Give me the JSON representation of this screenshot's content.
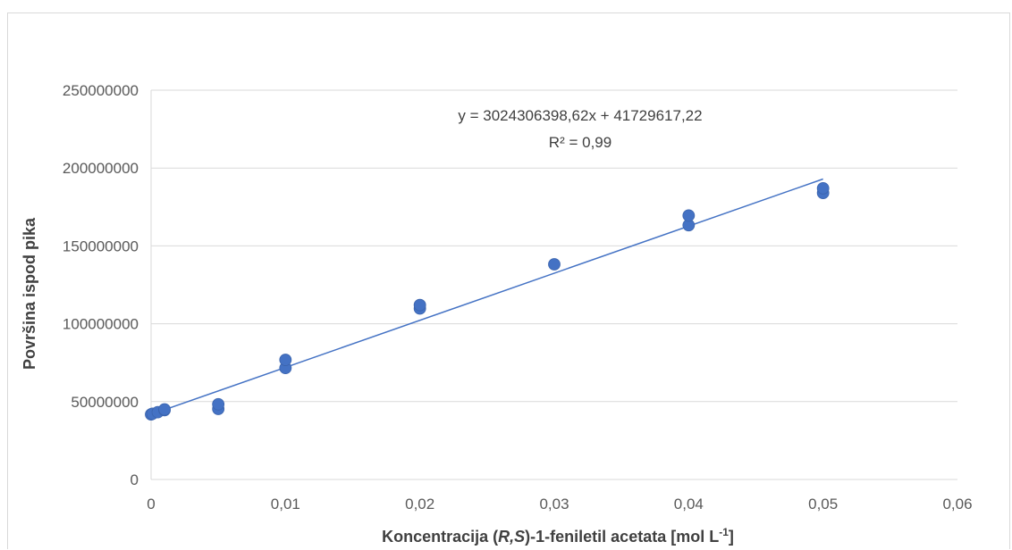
{
  "chart_data": {
    "type": "scatter",
    "title": "",
    "xlabel": {
      "prefix": "Koncentracija (",
      "italic": "R,S",
      "mid": ")-1-feniletil acetata [mol L",
      "sup": "-1",
      "suffix": "]"
    },
    "ylabel": "Površina ispod pika",
    "xlim": [
      0,
      0.06
    ],
    "ylim": [
      0,
      250000000
    ],
    "x_ticks": [
      0,
      0.01,
      0.02,
      0.03,
      0.04,
      0.05,
      0.06
    ],
    "x_tick_labels": [
      "0",
      "0,01",
      "0,02",
      "0,03",
      "0,04",
      "0,05",
      "0,06"
    ],
    "y_ticks": [
      0,
      50000000,
      100000000,
      150000000,
      200000000,
      250000000
    ],
    "y_tick_labels": [
      "0",
      "50000000",
      "100000000",
      "150000000",
      "200000000",
      "250000000"
    ],
    "grid": "horizontal",
    "series": [
      {
        "marker_color": "#4472C4",
        "points": [
          {
            "x": 0,
            "y": 41800000
          },
          {
            "x": 0.0001,
            "y": 42200000
          },
          {
            "x": 0.0005,
            "y": 43200000
          },
          {
            "x": 0.001,
            "y": 44500000
          },
          {
            "x": 0.001,
            "y": 45000000
          },
          {
            "x": 0.005,
            "y": 45300000
          },
          {
            "x": 0.005,
            "y": 48300000
          },
          {
            "x": 0.01,
            "y": 71600000
          },
          {
            "x": 0.01,
            "y": 76800000
          },
          {
            "x": 0.02,
            "y": 109800000
          },
          {
            "x": 0.02,
            "y": 112000000
          },
          {
            "x": 0.03,
            "y": 138200000
          },
          {
            "x": 0.04,
            "y": 163300000
          },
          {
            "x": 0.04,
            "y": 169500000
          },
          {
            "x": 0.05,
            "y": 184000000
          },
          {
            "x": 0.05,
            "y": 187000000
          }
        ]
      }
    ],
    "trendline": {
      "type": "linear",
      "slope": 3024306398.62,
      "intercept": 41729617.22,
      "x_range": [
        0,
        0.05
      ],
      "color": "#4472C4",
      "equation_label": "y = 3024306398,62x + 41729617,22",
      "r2_label": "R² = 0,99"
    }
  }
}
